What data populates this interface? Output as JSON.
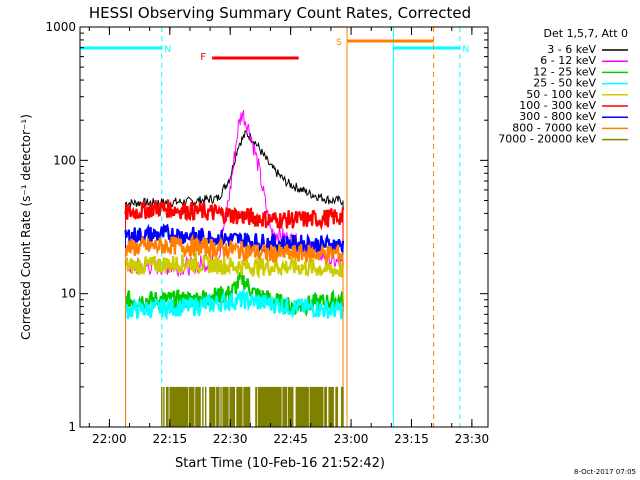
{
  "chart_data": {
    "type": "line",
    "title": "HESSI Observing Summary Count Rates, Corrected",
    "xlabel": "Start Time (10-Feb-16 21:52:42)",
    "ylabel": "Corrected Count Rate (s⁻¹ detector⁻¹)",
    "y_scale": "log",
    "ylim": [
      1,
      1000
    ],
    "xlim_minutes": [
      "21:52:42",
      "23:34:00"
    ],
    "x_ticks": [
      "22:00",
      "22:15",
      "22:30",
      "22:45",
      "23:00",
      "23:15",
      "23:30"
    ],
    "y_ticks": [
      "1",
      "10",
      "100",
      "1000"
    ],
    "legend_header": "Det 1,5,7, Att 0",
    "legend_position": "right",
    "footer": "8-Oct-2017 07:05",
    "series": [
      {
        "name": "3 - 6 keV",
        "color": "#000000",
        "x": [
          "22:04",
          "22:10",
          "22:20",
          "22:27",
          "22:30",
          "22:32",
          "22:34",
          "22:36",
          "22:40",
          "22:44",
          "22:50",
          "22:55",
          "22:58"
        ],
        "values": [
          48,
          48,
          49,
          52,
          75,
          130,
          160,
          140,
          90,
          68,
          56,
          50,
          50
        ]
      },
      {
        "name": "6 - 12 keV",
        "color": "#ff00ff",
        "x": [
          "22:04",
          "22:10",
          "22:20",
          "22:27",
          "22:30",
          "22:32",
          "22:33",
          "22:35",
          "22:37",
          "22:40",
          "22:45",
          "22:50",
          "22:58"
        ],
        "values": [
          16,
          16,
          16,
          18,
          60,
          180,
          230,
          160,
          90,
          30,
          25,
          22,
          16
        ]
      },
      {
        "name": "12 - 25 keV",
        "color": "#00cc00",
        "x": [
          "22:04",
          "22:20",
          "22:30",
          "22:33",
          "22:36",
          "22:45",
          "22:58"
        ],
        "values": [
          9,
          9,
          10,
          13,
          10,
          8,
          9
        ]
      },
      {
        "name": "25 - 50 keV",
        "color": "#00ffff",
        "x": [
          "22:04",
          "22:20",
          "22:33",
          "22:45",
          "22:58"
        ],
        "values": [
          7.5,
          8,
          9,
          8,
          7.5
        ]
      },
      {
        "name": "50 - 100 keV",
        "color": "#cccc00",
        "x": [
          "22:04",
          "22:20",
          "22:33",
          "22:45",
          "22:58"
        ],
        "values": [
          16,
          17,
          16,
          16,
          15
        ]
      },
      {
        "name": "100 - 300 keV",
        "color": "#ff0000",
        "x": [
          "22:04",
          "22:12",
          "22:20",
          "22:27",
          "22:33",
          "22:40",
          "22:50",
          "22:58"
        ],
        "values": [
          40,
          44,
          42,
          40,
          38,
          36,
          36,
          38
        ]
      },
      {
        "name": "300 - 800 keV",
        "color": "#0000ff",
        "x": [
          "22:04",
          "22:15",
          "22:27",
          "22:40",
          "22:58"
        ],
        "values": [
          27,
          28,
          26,
          24,
          23
        ]
      },
      {
        "name": "800 - 7000 keV",
        "color": "#ff8000",
        "x": [
          "22:04",
          "22:15",
          "22:27",
          "22:40",
          "22:58"
        ],
        "values": [
          22,
          23,
          22,
          20,
          20
        ]
      },
      {
        "name": "7000 - 20000 keV",
        "color": "#808000",
        "x": [
          "22:13",
          "22:20",
          "22:30",
          "22:40",
          "22:50",
          "22:58"
        ],
        "values": [
          2,
          2,
          2,
          2,
          2,
          2
        ]
      }
    ],
    "annotations": [
      {
        "label": "N",
        "color": "#00ffff",
        "type": "night",
        "start": "21:52:42",
        "end": "22:13:00"
      },
      {
        "label": "N",
        "color": "#00ffff",
        "type": "night",
        "start": "23:10:30",
        "end": "23:27:00"
      },
      {
        "label": "S",
        "color": "#ff8000",
        "type": "saa",
        "start": "22:59:00",
        "end": "23:20:30"
      },
      {
        "label": "F",
        "color": "#ff0000",
        "type": "flare",
        "start": "22:25:30",
        "end": "22:47:00"
      }
    ],
    "data_window": {
      "start": "22:04:00",
      "end": "22:59:00"
    }
  }
}
